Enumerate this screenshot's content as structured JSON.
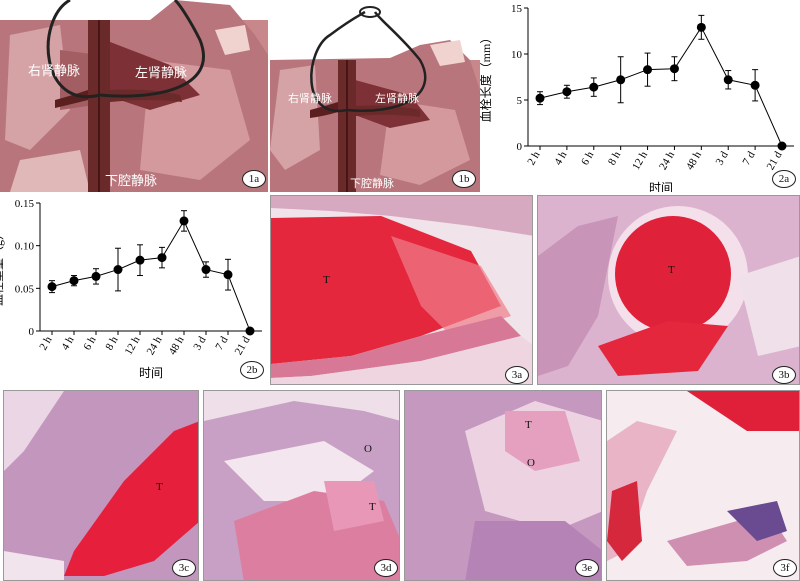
{
  "panel_1a": {
    "tag": "1a",
    "right_renal_vein": "右肾静脉",
    "left_renal_vein": "左肾静脉",
    "ivc": "下腔静脉"
  },
  "panel_1b": {
    "tag": "1b",
    "right_renal_vein": "右肾静脉",
    "left_renal_vein": "左肾静脉",
    "ivc": "下腔静脉"
  },
  "panel_2a": {
    "tag": "2a"
  },
  "panel_2b": {
    "tag": "2b"
  },
  "panel_3a": {
    "tag": "3a",
    "letters": [
      "T"
    ]
  },
  "panel_3b": {
    "tag": "3b",
    "letters": [
      "T"
    ]
  },
  "panel_3c": {
    "tag": "3c",
    "letters": [
      "T"
    ]
  },
  "panel_3d": {
    "tag": "3d",
    "letters": [
      "O",
      "T"
    ]
  },
  "panel_3e": {
    "tag": "3e",
    "letters": [
      "T",
      "O"
    ]
  },
  "panel_3f": {
    "tag": "3f"
  },
  "colors": {
    "tissue_pink": "#d9a0b8",
    "thrombus_red": "#e0203a",
    "vessel_dark": "#6b2a2a"
  },
  "chart_data": [
    {
      "type": "line",
      "categories": [
        "2 h",
        "4 h",
        "6 h",
        "8 h",
        "12 h",
        "24 h",
        "48 h",
        "3 d",
        "7 d",
        "21 d"
      ],
      "values": [
        5.2,
        5.9,
        6.4,
        7.2,
        8.3,
        8.4,
        12.9,
        7.2,
        6.6,
        0
      ],
      "errors": [
        0.7,
        0.7,
        1.0,
        2.5,
        1.8,
        1.3,
        1.3,
        1.0,
        1.7,
        0
      ],
      "ylabel": "血栓长度（mm）",
      "xlabel": "时间",
      "ylim": [
        0,
        15
      ],
      "yticks": [
        "0",
        "5",
        "10",
        "15"
      ]
    },
    {
      "type": "line",
      "categories": [
        "2 h",
        "4 h",
        "6 h",
        "8 h",
        "12 h",
        "24 h",
        "48 h",
        "3 d",
        "7 d",
        "21 d"
      ],
      "values": [
        0.052,
        0.059,
        0.064,
        0.072,
        0.083,
        0.086,
        0.129,
        0.072,
        0.066,
        0
      ],
      "errors": [
        0.007,
        0.006,
        0.009,
        0.025,
        0.018,
        0.012,
        0.012,
        0.009,
        0.018,
        0
      ],
      "ylabel": "血栓重量（g）",
      "xlabel": "时间",
      "ylim": [
        0,
        0.15
      ],
      "yticks": [
        "0",
        "0.05",
        "0.10",
        "0.15"
      ]
    }
  ]
}
